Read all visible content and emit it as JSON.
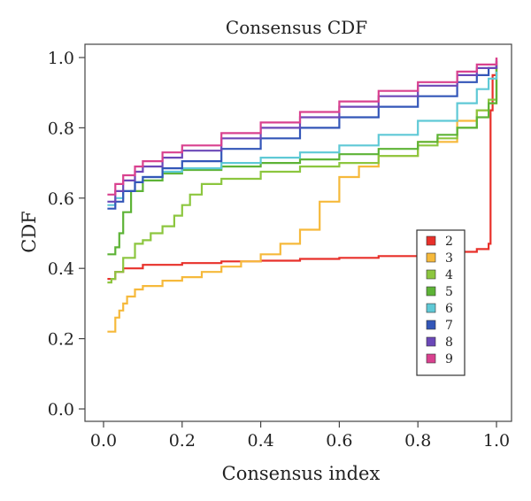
{
  "chart_data": {
    "type": "line",
    "title": "Consensus CDF",
    "xlabel": "Consensus index",
    "ylabel": "CDF",
    "xlim": [
      0.0,
      1.0
    ],
    "ylim": [
      0.0,
      1.0
    ],
    "xticks": [
      "0.0",
      "0.2",
      "0.4",
      "0.6",
      "0.8",
      "1.0"
    ],
    "yticks": [
      "0.0",
      "0.2",
      "0.4",
      "0.6",
      "0.8",
      "1.0"
    ],
    "grid": false,
    "legend_position": "center-right",
    "series": [
      {
        "name": "2",
        "color": "#e8302a",
        "x": [
          0.01,
          0.02,
          0.03,
          0.05,
          0.1,
          0.2,
          0.3,
          0.4,
          0.5,
          0.6,
          0.7,
          0.8,
          0.9,
          0.95,
          0.98,
          0.985,
          0.99,
          1.0
        ],
        "y": [
          0.37,
          0.37,
          0.39,
          0.4,
          0.41,
          0.415,
          0.42,
          0.422,
          0.427,
          0.43,
          0.435,
          0.44,
          0.447,
          0.455,
          0.47,
          0.85,
          0.95,
          1.0
        ]
      },
      {
        "name": "3",
        "color": "#f6b93b",
        "x": [
          0.01,
          0.02,
          0.03,
          0.04,
          0.05,
          0.06,
          0.08,
          0.1,
          0.15,
          0.2,
          0.25,
          0.3,
          0.35,
          0.4,
          0.45,
          0.5,
          0.55,
          0.6,
          0.65,
          0.7,
          0.8,
          0.9,
          0.95,
          0.98,
          1.0
        ],
        "y": [
          0.22,
          0.22,
          0.26,
          0.28,
          0.3,
          0.32,
          0.34,
          0.35,
          0.365,
          0.375,
          0.39,
          0.405,
          0.42,
          0.44,
          0.47,
          0.51,
          0.59,
          0.66,
          0.69,
          0.72,
          0.76,
          0.82,
          0.85,
          0.87,
          0.99
        ]
      },
      {
        "name": "4",
        "color": "#8cc63f",
        "x": [
          0.01,
          0.02,
          0.03,
          0.05,
          0.08,
          0.1,
          0.12,
          0.15,
          0.18,
          0.2,
          0.22,
          0.25,
          0.3,
          0.4,
          0.5,
          0.6,
          0.7,
          0.8,
          0.85,
          0.9,
          0.95,
          0.98,
          1.0
        ],
        "y": [
          0.36,
          0.37,
          0.39,
          0.43,
          0.47,
          0.48,
          0.5,
          0.52,
          0.55,
          0.58,
          0.61,
          0.64,
          0.655,
          0.675,
          0.69,
          0.7,
          0.72,
          0.75,
          0.77,
          0.8,
          0.85,
          0.88,
          0.98
        ]
      },
      {
        "name": "5",
        "color": "#5db336",
        "x": [
          0.01,
          0.02,
          0.03,
          0.04,
          0.05,
          0.07,
          0.1,
          0.15,
          0.2,
          0.3,
          0.4,
          0.5,
          0.6,
          0.7,
          0.8,
          0.85,
          0.9,
          0.95,
          0.98,
          1.0
        ],
        "y": [
          0.44,
          0.44,
          0.46,
          0.5,
          0.56,
          0.62,
          0.65,
          0.67,
          0.68,
          0.69,
          0.7,
          0.71,
          0.725,
          0.74,
          0.76,
          0.78,
          0.8,
          0.83,
          0.87,
          0.98
        ]
      },
      {
        "name": "6",
        "color": "#5fc9d6",
        "x": [
          0.01,
          0.02,
          0.03,
          0.05,
          0.08,
          0.1,
          0.15,
          0.2,
          0.3,
          0.4,
          0.5,
          0.6,
          0.7,
          0.8,
          0.9,
          0.95,
          0.98,
          1.0
        ],
        "y": [
          0.58,
          0.58,
          0.6,
          0.62,
          0.645,
          0.66,
          0.675,
          0.685,
          0.7,
          0.715,
          0.73,
          0.75,
          0.78,
          0.82,
          0.87,
          0.91,
          0.94,
          0.96
        ]
      },
      {
        "name": "7",
        "color": "#3356b8",
        "x": [
          0.01,
          0.02,
          0.03,
          0.05,
          0.08,
          0.1,
          0.15,
          0.2,
          0.3,
          0.4,
          0.5,
          0.6,
          0.7,
          0.8,
          0.9,
          0.95,
          0.98,
          1.0
        ],
        "y": [
          0.57,
          0.57,
          0.59,
          0.62,
          0.645,
          0.66,
          0.685,
          0.705,
          0.74,
          0.77,
          0.8,
          0.83,
          0.86,
          0.89,
          0.93,
          0.95,
          0.97,
          0.99
        ]
      },
      {
        "name": "8",
        "color": "#6b48b8",
        "x": [
          0.01,
          0.02,
          0.03,
          0.05,
          0.08,
          0.1,
          0.15,
          0.2,
          0.3,
          0.4,
          0.5,
          0.6,
          0.7,
          0.8,
          0.9,
          0.95,
          1.0
        ],
        "y": [
          0.59,
          0.59,
          0.62,
          0.65,
          0.675,
          0.69,
          0.715,
          0.735,
          0.77,
          0.8,
          0.83,
          0.86,
          0.89,
          0.92,
          0.95,
          0.97,
          0.995
        ]
      },
      {
        "name": "9",
        "color": "#d9418f",
        "x": [
          0.01,
          0.02,
          0.03,
          0.05,
          0.08,
          0.1,
          0.15,
          0.2,
          0.3,
          0.4,
          0.5,
          0.6,
          0.7,
          0.8,
          0.9,
          0.95,
          1.0
        ],
        "y": [
          0.61,
          0.61,
          0.64,
          0.665,
          0.69,
          0.705,
          0.73,
          0.75,
          0.785,
          0.815,
          0.845,
          0.875,
          0.905,
          0.93,
          0.96,
          0.98,
          1.0
        ]
      }
    ]
  }
}
